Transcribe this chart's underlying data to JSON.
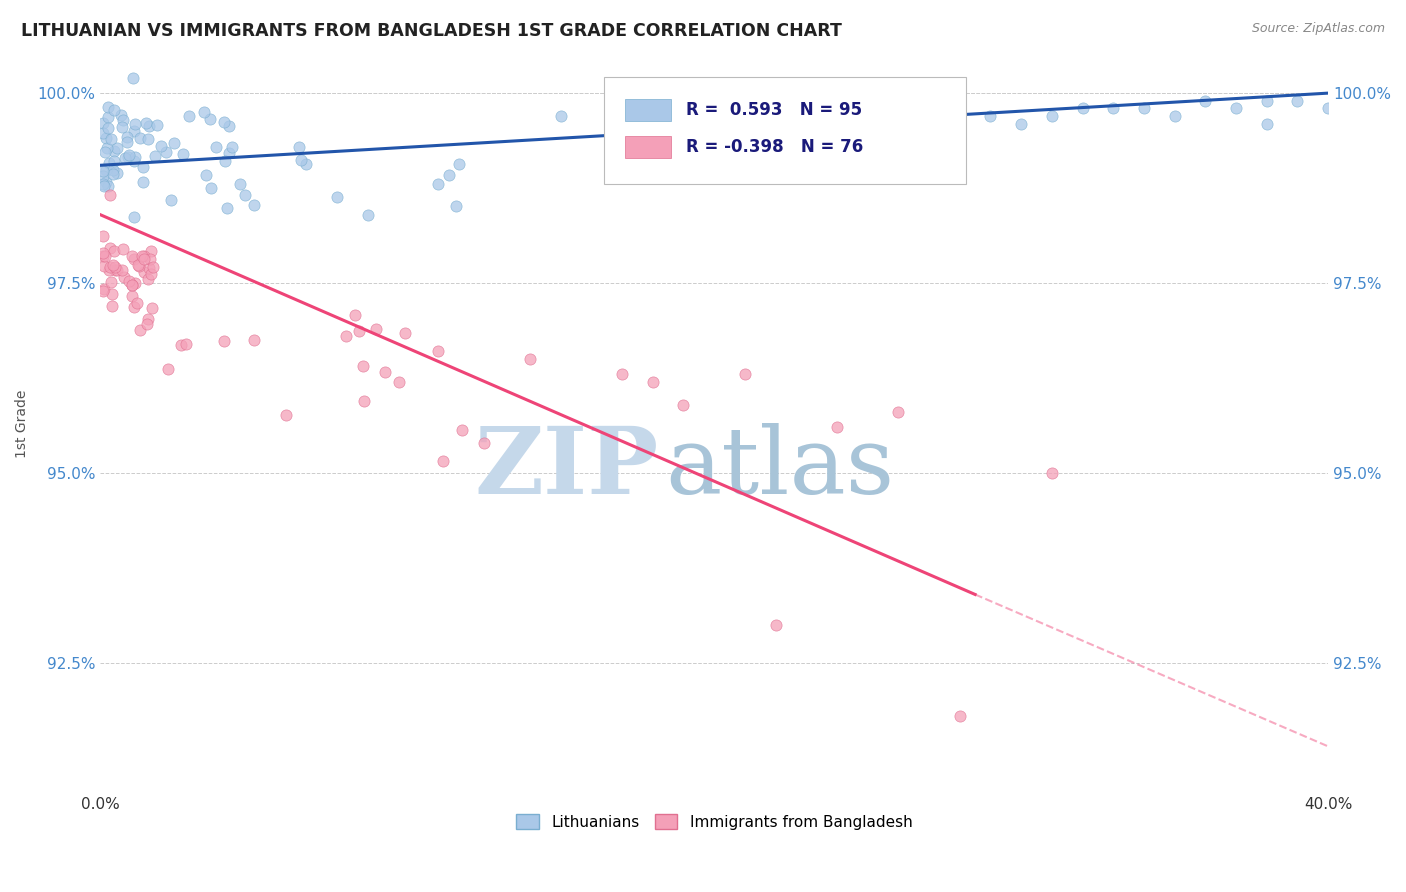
{
  "title": "LITHUANIAN VS IMMIGRANTS FROM BANGLADESH 1ST GRADE CORRELATION CHART",
  "source": "Source: ZipAtlas.com",
  "ylabel": "1st Grade",
  "R_blue": 0.593,
  "N_blue": 95,
  "R_pink": -0.398,
  "N_pink": 76,
  "blue_color": "#aac8e8",
  "blue_edge_color": "#7aaed0",
  "blue_line_color": "#2255aa",
  "pink_color": "#f4a0b8",
  "pink_edge_color": "#e07090",
  "pink_line_color": "#ee4477",
  "watermark_zip": "ZIP",
  "watermark_atlas": "atlas",
  "watermark_color_zip": "#c8d8e8",
  "watermark_color_atlas": "#a8c0d8",
  "background_color": "#ffffff",
  "grid_color": "#cccccc",
  "y_ticks": [
    92.5,
    95.0,
    97.5,
    100.0
  ],
  "x_lim": [
    0.0,
    0.4
  ],
  "y_lim": [
    90.8,
    100.5
  ],
  "legend_blue_label": "Lithuanians",
  "legend_pink_label": "Immigrants from Bangladesh",
  "title_color": "#222222",
  "source_color": "#888888",
  "tick_color": "#4488cc",
  "ylabel_color": "#555555"
}
